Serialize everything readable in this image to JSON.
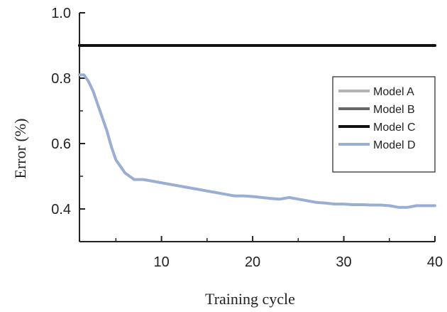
{
  "chart_data": {
    "type": "line",
    "title": "",
    "xlabel": "Training cycle",
    "ylabel": "Error (%)",
    "xlim": [
      1,
      40
    ],
    "ylim": [
      0.3,
      1.0
    ],
    "xticks": [
      10,
      20,
      30,
      40
    ],
    "yticks": [
      0.4,
      0.6,
      0.8,
      1.0
    ],
    "xtick_labels": [
      "10",
      "20",
      "30",
      "40"
    ],
    "ytick_labels": [
      "0.4",
      "0.6",
      "0.8",
      "1.0"
    ],
    "grid": false,
    "legend_position": "right",
    "series": [
      {
        "name": "Model A",
        "color": "#b3b3b3",
        "x": [
          1,
          40
        ],
        "y": [
          0.9,
          0.9
        ]
      },
      {
        "name": "Model B",
        "color": "#666666",
        "x": [
          1,
          40
        ],
        "y": [
          0.9,
          0.9
        ]
      },
      {
        "name": "Model C",
        "color": "#111111",
        "x": [
          1,
          40
        ],
        "y": [
          0.9,
          0.9
        ]
      },
      {
        "name": "Model D",
        "color": "#9aaed3",
        "x": [
          1,
          1.5,
          2,
          2.5,
          3,
          3.5,
          4,
          4.5,
          5,
          5.5,
          6,
          6.5,
          7,
          7.5,
          8,
          9,
          10,
          11,
          12,
          13,
          14,
          15,
          16,
          17,
          18,
          19,
          20,
          21,
          22,
          23,
          24,
          25,
          26,
          27,
          28,
          29,
          30,
          31,
          32,
          33,
          34,
          35,
          36,
          37,
          38,
          39,
          40
        ],
        "y": [
          0.81,
          0.81,
          0.79,
          0.76,
          0.72,
          0.68,
          0.64,
          0.59,
          0.55,
          0.53,
          0.51,
          0.5,
          0.49,
          0.49,
          0.49,
          0.485,
          0.48,
          0.475,
          0.47,
          0.465,
          0.46,
          0.455,
          0.45,
          0.445,
          0.44,
          0.44,
          0.438,
          0.435,
          0.432,
          0.43,
          0.435,
          0.43,
          0.425,
          0.42,
          0.418,
          0.415,
          0.415,
          0.413,
          0.413,
          0.412,
          0.412,
          0.41,
          0.405,
          0.405,
          0.41,
          0.41,
          0.41
        ]
      }
    ]
  }
}
